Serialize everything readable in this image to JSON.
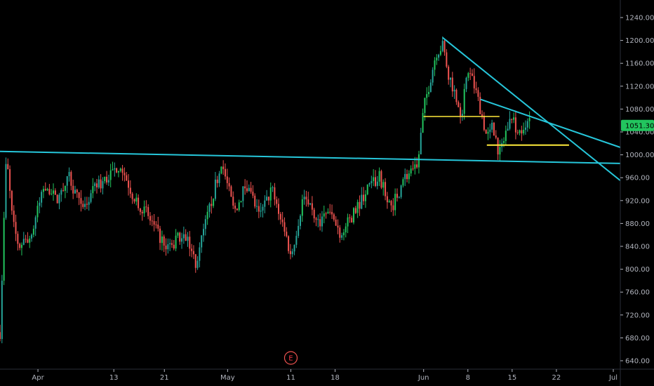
{
  "chart_data": {
    "type": "candlestick",
    "title": "",
    "xlabel": "",
    "ylabel": "",
    "ylim": [
      630,
      1250
    ],
    "x_range": [
      "2020-03-26",
      "2020-07-01"
    ],
    "y_ticks": [
      "1240.00",
      "1200.00",
      "1160.00",
      "1120.00",
      "1080.00",
      "1040.00",
      "1000.00",
      "960.00",
      "920.00",
      "880.00",
      "840.00",
      "800.00",
      "760.00",
      "720.00",
      "680.00",
      "640.00"
    ],
    "x_ticks": [
      {
        "label": "Apr",
        "date": "2020-04-01"
      },
      {
        "label": "13",
        "date": "2020-04-13"
      },
      {
        "label": "21",
        "date": "2020-04-21"
      },
      {
        "label": "May",
        "date": "2020-05-01"
      },
      {
        "label": "11",
        "date": "2020-05-11"
      },
      {
        "label": "18",
        "date": "2020-05-18"
      },
      {
        "label": "Jun",
        "date": "2020-06-01"
      },
      {
        "label": "8",
        "date": "2020-06-08"
      },
      {
        "label": "15",
        "date": "2020-06-15"
      },
      {
        "label": "22",
        "date": "2020-06-22"
      },
      {
        "label": "Jul",
        "date": "2020-07-01"
      }
    ],
    "current_price": "1051.30",
    "current_price_value": 1051.3,
    "event_marker": {
      "label": "E",
      "date": "2020-05-11"
    },
    "colors": {
      "up": "#26a69a",
      "up_bright": "#22c55e",
      "down": "#ef5350",
      "trendline": "#26c6da",
      "level": "#ffeb3b",
      "price_tag": "#22c55e"
    },
    "trendlines": [
      {
        "name": "",
        "from": {
          "date": "2020-03-26",
          "price": 1006
        },
        "to": {
          "date": "2020-07-01",
          "price": 985
        },
        "color": "#26c6da"
      },
      {
        "name": "",
        "from": {
          "date": "2020-06-04",
          "price": 1205
        },
        "to": {
          "date": "2020-07-01",
          "price": 955
        },
        "color": "#26c6da"
      },
      {
        "name": "",
        "from": {
          "date": "2020-06-10",
          "price": 1097
        },
        "to": {
          "date": "2020-07-01",
          "price": 1013
        },
        "color": "#26c6da"
      }
    ],
    "levels": [
      {
        "from": "2020-06-01",
        "to": "2020-06-13",
        "price": 1067,
        "color": "#ffeb3b"
      },
      {
        "from": "2020-06-11",
        "to": "2020-06-24",
        "price": 1017,
        "color": "#ffeb3b"
      }
    ],
    "price_path": [
      [
        "2020-03-26",
        690
      ],
      [
        "2020-03-27",
        1000
      ],
      [
        "2020-03-28",
        880
      ],
      [
        "2020-03-29",
        840
      ],
      [
        "2020-03-31",
        860
      ],
      [
        "2020-04-02",
        950
      ],
      [
        "2020-04-04",
        920
      ],
      [
        "2020-04-06",
        960
      ],
      [
        "2020-04-08",
        900
      ],
      [
        "2020-04-10",
        940
      ],
      [
        "2020-04-12",
        960
      ],
      [
        "2020-04-14",
        985
      ],
      [
        "2020-04-16",
        930
      ],
      [
        "2020-04-18",
        900
      ],
      [
        "2020-04-20",
        860
      ],
      [
        "2020-04-22",
        835
      ],
      [
        "2020-04-24",
        870
      ],
      [
        "2020-04-26",
        810
      ],
      [
        "2020-04-28",
        900
      ],
      [
        "2020-04-30",
        990
      ],
      [
        "2020-05-02",
        900
      ],
      [
        "2020-05-04",
        950
      ],
      [
        "2020-05-06",
        890
      ],
      [
        "2020-05-08",
        940
      ],
      [
        "2020-05-10",
        870
      ],
      [
        "2020-05-11",
        820
      ],
      [
        "2020-05-13",
        930
      ],
      [
        "2020-05-15",
        880
      ],
      [
        "2020-05-17",
        900
      ],
      [
        "2020-05-19",
        860
      ],
      [
        "2020-05-21",
        900
      ],
      [
        "2020-05-23",
        940
      ],
      [
        "2020-05-25",
        960
      ],
      [
        "2020-05-27",
        910
      ],
      [
        "2020-05-29",
        960
      ],
      [
        "2020-05-31",
        975
      ],
      [
        "2020-06-01",
        1080
      ],
      [
        "2020-06-02",
        1130
      ],
      [
        "2020-06-03",
        1180
      ],
      [
        "2020-06-04",
        1190
      ],
      [
        "2020-06-05",
        1140
      ],
      [
        "2020-06-07",
        1070
      ],
      [
        "2020-06-08",
        1150
      ],
      [
        "2020-06-09",
        1120
      ],
      [
        "2020-06-10",
        1080
      ],
      [
        "2020-06-11",
        1030
      ],
      [
        "2020-06-12",
        1050
      ],
      [
        "2020-06-13",
        1000
      ],
      [
        "2020-06-14",
        1040
      ],
      [
        "2020-06-15",
        1070
      ],
      [
        "2020-06-16",
        1035
      ],
      [
        "2020-06-17",
        1060
      ],
      [
        "2020-06-18",
        1051
      ]
    ]
  }
}
